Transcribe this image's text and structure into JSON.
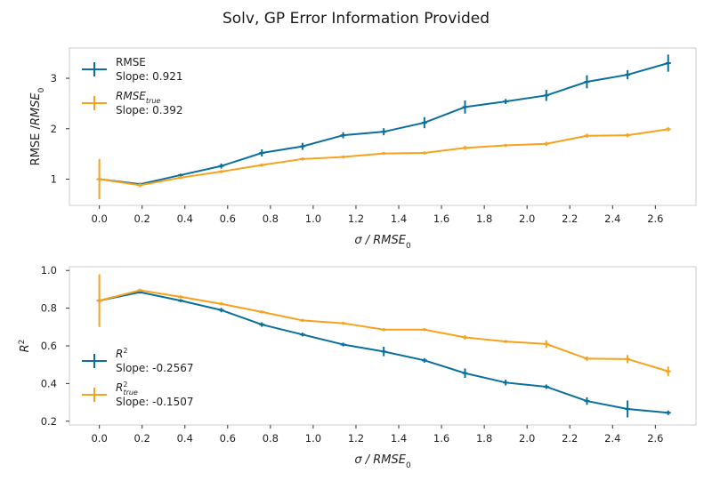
{
  "figure_title": "Solv, GP Error Information Provided",
  "colors": {
    "series_1": "#0a6f9d",
    "series_2": "#f6a21e"
  },
  "chart_data": [
    {
      "type": "line",
      "ylabel": "RMSE /RMSE₀",
      "xlabel": "σ / RMSE₀",
      "xlim": [
        -0.14,
        2.79
      ],
      "ylim": [
        0.48,
        3.6
      ],
      "xticks": [
        0.0,
        0.2,
        0.4,
        0.6,
        0.8,
        1.0,
        1.2,
        1.4,
        1.6,
        1.8,
        2.0,
        2.2,
        2.4,
        2.6
      ],
      "yticks": [
        1,
        2,
        3
      ],
      "grid": false,
      "legend_position": "upper-left",
      "x": [
        0.0,
        0.19,
        0.38,
        0.57,
        0.76,
        0.95,
        1.14,
        1.33,
        1.52,
        1.71,
        1.9,
        2.09,
        2.28,
        2.47,
        2.66
      ],
      "series": [
        {
          "name": "RMSE",
          "legend_label": "RMSE",
          "slope_text": "Slope: 0.921",
          "color": "#0a6f9d",
          "values": [
            1.0,
            0.9,
            1.08,
            1.26,
            1.52,
            1.65,
            1.87,
            1.94,
            2.12,
            2.43,
            2.54,
            2.66,
            2.93,
            3.07,
            3.3
          ],
          "errors": [
            0.03,
            0.03,
            0.03,
            0.05,
            0.07,
            0.07,
            0.06,
            0.07,
            0.11,
            0.13,
            0.05,
            0.11,
            0.13,
            0.09,
            0.17
          ]
        },
        {
          "name": "RMSE_true",
          "legend_label": "RMSE",
          "legend_sub": "true",
          "slope_text": "Slope: 0.392",
          "color": "#f6a21e",
          "values": [
            1.0,
            0.88,
            1.03,
            1.15,
            1.28,
            1.4,
            1.44,
            1.51,
            1.52,
            1.62,
            1.67,
            1.7,
            1.86,
            1.87,
            1.99
          ],
          "errors": [
            0.4,
            0.04,
            0.03,
            0.03,
            0.03,
            0.03,
            0.03,
            0.03,
            0.03,
            0.04,
            0.03,
            0.04,
            0.04,
            0.04,
            0.04
          ]
        }
      ]
    },
    {
      "type": "line",
      "ylabel": "R²",
      "xlabel": "σ / RMSE₀",
      "xlim": [
        -0.14,
        2.79
      ],
      "ylim": [
        0.18,
        1.02
      ],
      "xticks": [
        0.0,
        0.2,
        0.4,
        0.6,
        0.8,
        1.0,
        1.2,
        1.4,
        1.6,
        1.8,
        2.0,
        2.2,
        2.4,
        2.6
      ],
      "yticks": [
        0.2,
        0.4,
        0.6,
        0.8,
        1.0
      ],
      "grid": false,
      "legend_position": "lower-left",
      "x": [
        0.0,
        0.19,
        0.38,
        0.57,
        0.76,
        0.95,
        1.14,
        1.33,
        1.52,
        1.71,
        1.9,
        2.09,
        2.28,
        2.47,
        2.66
      ],
      "series": [
        {
          "name": "R2",
          "legend_label": "R",
          "legend_sup": "2",
          "slope_text": "Slope: -0.2567",
          "color": "#0a6f9d",
          "values": [
            0.84,
            0.885,
            0.84,
            0.79,
            0.713,
            0.66,
            0.607,
            0.57,
            0.523,
            0.455,
            0.405,
            0.383,
            0.307,
            0.265,
            0.245
          ],
          "errors": [
            0.01,
            0.008,
            0.008,
            0.012,
            0.012,
            0.01,
            0.01,
            0.025,
            0.012,
            0.025,
            0.015,
            0.012,
            0.02,
            0.045,
            0.012
          ]
        },
        {
          "name": "R2_true",
          "legend_label": "R",
          "legend_sup": "2",
          "legend_sub": "true",
          "slope_text": "Slope: -0.1507",
          "color": "#f6a21e",
          "values": [
            0.84,
            0.895,
            0.86,
            0.823,
            0.78,
            0.735,
            0.72,
            0.686,
            0.686,
            0.645,
            0.623,
            0.61,
            0.532,
            0.53,
            0.465
          ],
          "errors": [
            0.14,
            0.008,
            0.008,
            0.008,
            0.008,
            0.008,
            0.008,
            0.008,
            0.008,
            0.012,
            0.008,
            0.02,
            0.012,
            0.022,
            0.025
          ]
        }
      ]
    }
  ]
}
